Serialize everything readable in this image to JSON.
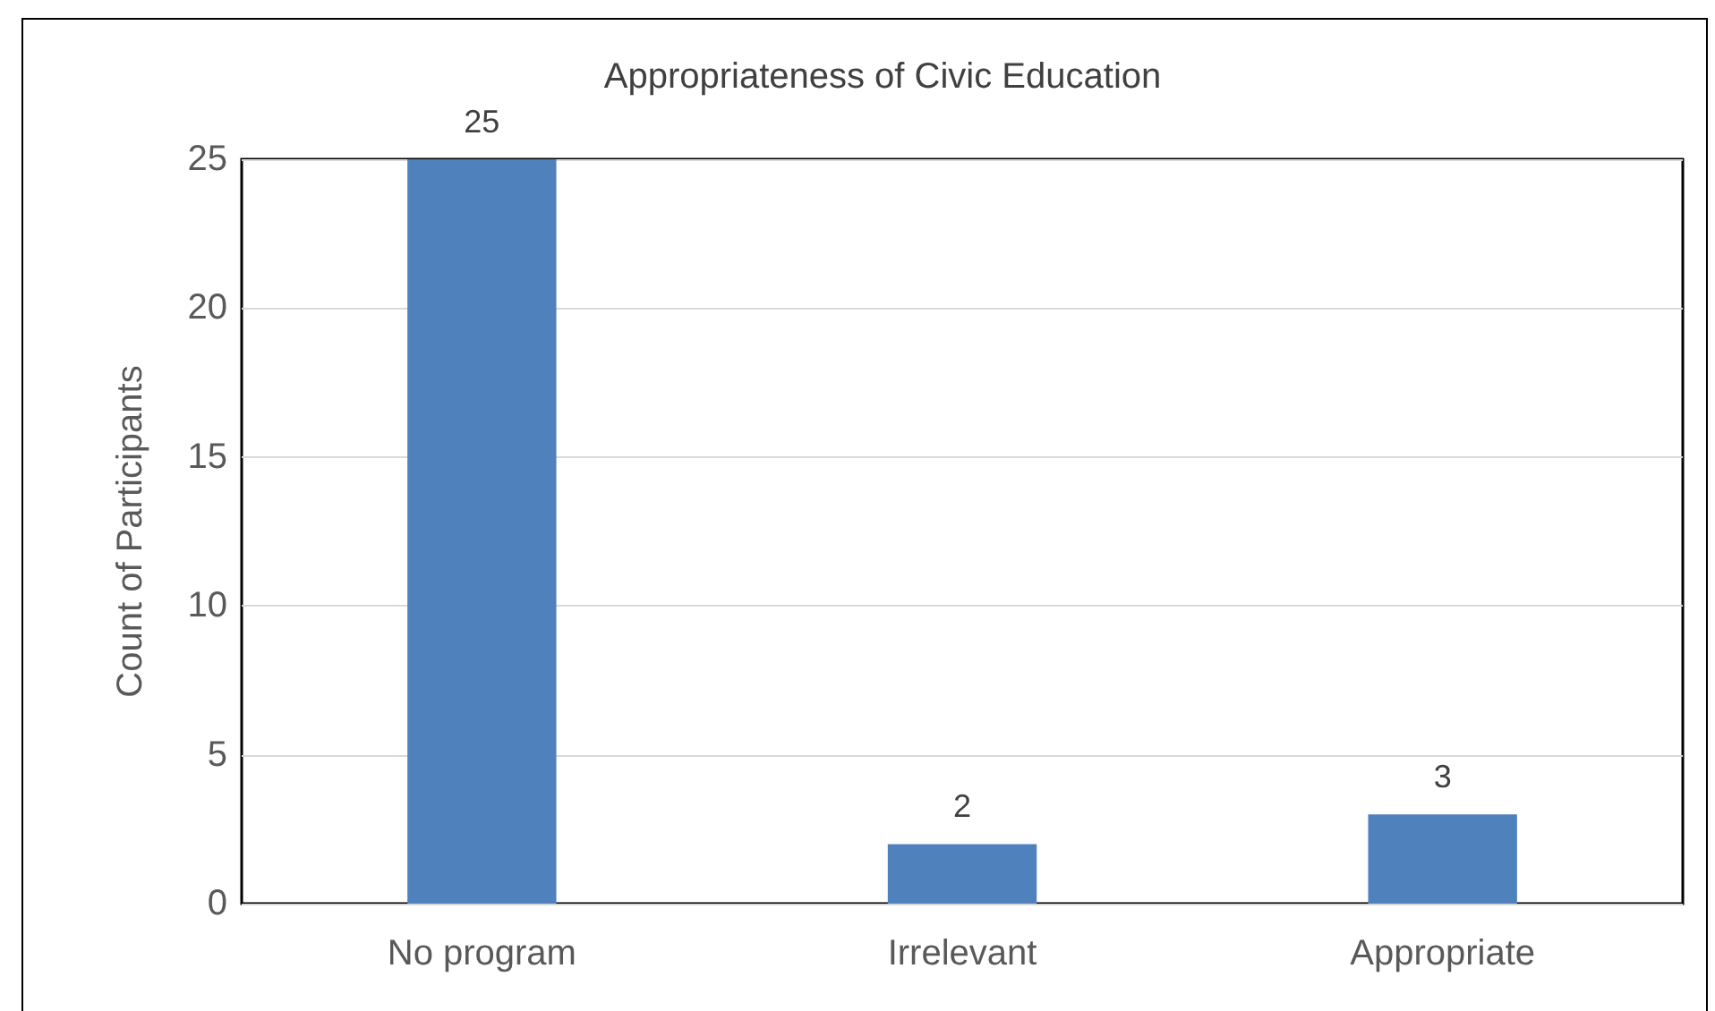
{
  "chart_data": {
    "type": "bar",
    "title": "Appropriateness of Civic Education",
    "ylabel": "Count of Participants",
    "categories": [
      "No program",
      "Irrelevant",
      "Appropriate"
    ],
    "values": [
      25,
      2,
      3
    ],
    "color": "#4f81bd",
    "ylim": [
      0,
      25
    ],
    "yticks": [
      0,
      5,
      10,
      15,
      20,
      25
    ],
    "grid": "y",
    "data_labels": true
  }
}
